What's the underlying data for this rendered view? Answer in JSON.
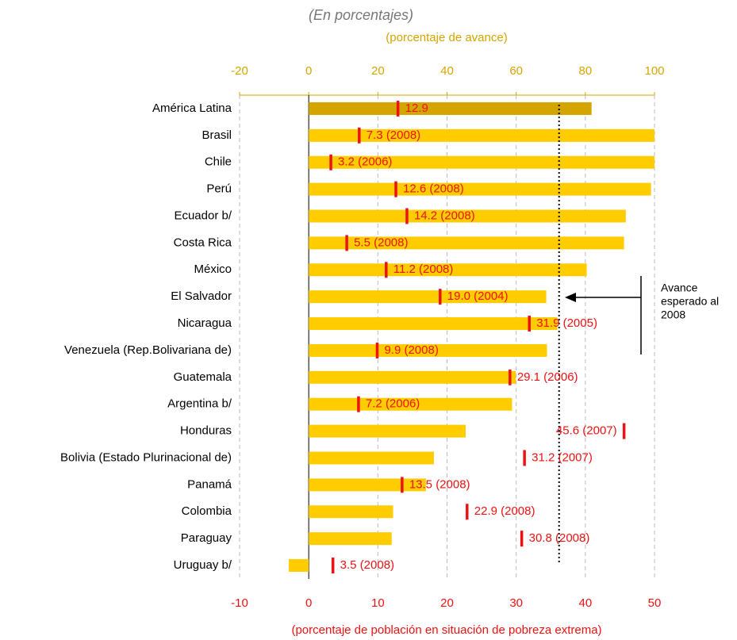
{
  "chart_data": {
    "type": "bar",
    "subtitle": "(En porcentajes)",
    "xlabel": "(porcentaje de avance)",
    "x2label": "(porcentaje de población en situación de pobreza extrema)",
    "categories": [
      "América Latina",
      "Brasil",
      "Chile",
      "Perú",
      "Ecuador b/",
      "Costa Rica",
      "México",
      "El Salvador",
      "Nicaragua",
      "Venezuela (Rep.Bolivariana de)",
      "Guatemala",
      "Argentina b/",
      "Honduras",
      "Bolivia (Estado Plurinacional de)",
      "Panamá",
      "Colombia",
      "Paraguay",
      "Uruguay b/"
    ],
    "values": [
      81.8,
      100,
      100,
      99,
      91.7,
      91.2,
      80.4,
      68.7,
      71.9,
      68.9,
      59.9,
      58.8,
      45.4,
      36.2,
      33.9,
      24.4,
      24,
      -5.8
    ],
    "colors": [
      "#d4a500",
      "#ffcc00",
      "#ffcc00",
      "#ffcc00",
      "#ffcc00",
      "#ffcc00",
      "#ffcc00",
      "#ffcc00",
      "#ffcc00",
      "#ffcc00",
      "#ffcc00",
      "#ffcc00",
      "#ffcc00",
      "#ffcc00",
      "#ffcc00",
      "#ffcc00",
      "#ffcc00",
      "#ffcc00"
    ],
    "marker_values": [
      12.9,
      7.3,
      3.2,
      12.6,
      14.2,
      5.5,
      11.2,
      19.0,
      31.9,
      9.9,
      29.1,
      7.2,
      45.6,
      31.2,
      13.5,
      22.9,
      30.8,
      3.5
    ],
    "marker_labels": [
      "12.9",
      "7.3 (2008)",
      "3.2 (2006)",
      "12.6 (2008)",
      "14.2 (2008)",
      "5.5 (2008)",
      "11.2 (2008)",
      "19.0 (2004)",
      "31.9 (2005)",
      "9.9 (2008)",
      "29.1 (2006)",
      "7.2 (2006)",
      "45.6 (2007)",
      "31.2 (2007)",
      "13.5 (2008)",
      "22.9 (2008)",
      "30.8 (2008)",
      "3.5 (2008)"
    ],
    "marker_color": "#ee1111",
    "xlim": [
      -20,
      100
    ],
    "xticks": [
      -20,
      0,
      20,
      40,
      60,
      80,
      100
    ],
    "x2lim": [
      -10,
      50
    ],
    "x2ticks": [
      -10,
      0,
      10,
      20,
      30,
      40,
      50
    ],
    "target": 72.4,
    "annotation": [
      "Avance",
      "esperado al",
      "2008"
    ],
    "grid": true
  }
}
